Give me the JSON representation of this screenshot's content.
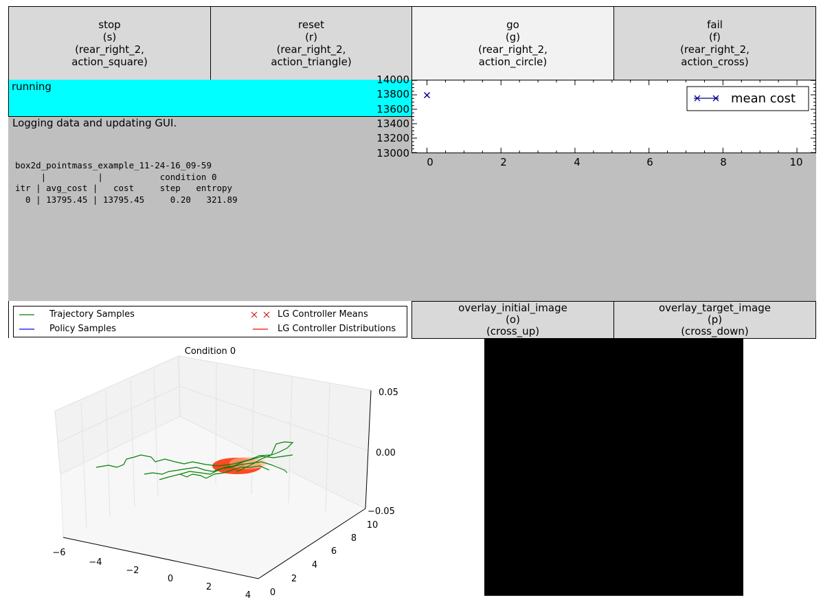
{
  "action_buttons": [
    {
      "lines": [
        "stop",
        "(s)",
        "(rear_right_2,",
        "action_square)"
      ]
    },
    {
      "lines": [
        "reset",
        "(r)",
        "(rear_right_2,",
        "action_triangle)"
      ]
    },
    {
      "lines": [
        "go",
        "(g)",
        "(rear_right_2,",
        "action_circle)"
      ]
    },
    {
      "lines": [
        "fail",
        "(f)",
        "(rear_right_2,",
        "action_cross)"
      ]
    }
  ],
  "status": {
    "text": "running",
    "color": "#00ffff"
  },
  "log": {
    "message": "Logging data and updating GUI.",
    "table_lines": [
      "box2d_pointmass_example_11-24-16_09-59",
      "     |          |           condition 0",
      "itr | avg_cost |   cost     step   entropy",
      "  0 | 13795.45 | 13795.45     0.20   321.89"
    ]
  },
  "chart_data": [
    {
      "type": "line",
      "series": [
        {
          "name": "mean cost",
          "x": [
            0
          ],
          "values": [
            13795.45
          ],
          "color": "#00008b",
          "marker": "x"
        }
      ],
      "x_ticks": [
        "0",
        "2",
        "4",
        "6",
        "8",
        "10"
      ],
      "y_ticks": [
        "14000",
        "13800",
        "13600",
        "13400",
        "13200",
        "13000"
      ],
      "xlim": [
        -0.4,
        10.5
      ],
      "ylim": [
        13000,
        14000
      ],
      "legend_position": "top-right",
      "legend": "mean cost"
    },
    {
      "type": "line",
      "title": "Condition 0",
      "legend": [
        {
          "label": "Trajectory Samples",
          "color": "#008000"
        },
        {
          "label": "Policy Samples",
          "color": "#0000ff"
        },
        {
          "label": "LG Controller Means",
          "color": "#ff0000",
          "marker": "x"
        },
        {
          "label": "LG Controller Distributions",
          "color": "#ff0000"
        }
      ],
      "x_ticks": [
        "−6",
        "−4",
        "−2",
        "0",
        "2",
        "4"
      ],
      "y_ticks": [
        "0",
        "2",
        "4",
        "6",
        "8",
        "10"
      ],
      "z_ticks": [
        "0.05",
        "0.00",
        "−0.05"
      ],
      "xlim": [
        -6,
        4
      ],
      "ylim": [
        0,
        10
      ],
      "zlim": [
        -0.05,
        0.05
      ]
    }
  ],
  "overlay_buttons": [
    {
      "lines": [
        "overlay_initial_image",
        "(o)",
        "(cross_up)"
      ]
    },
    {
      "lines": [
        "overlay_target_image",
        "(p)",
        "(cross_down)"
      ]
    }
  ]
}
